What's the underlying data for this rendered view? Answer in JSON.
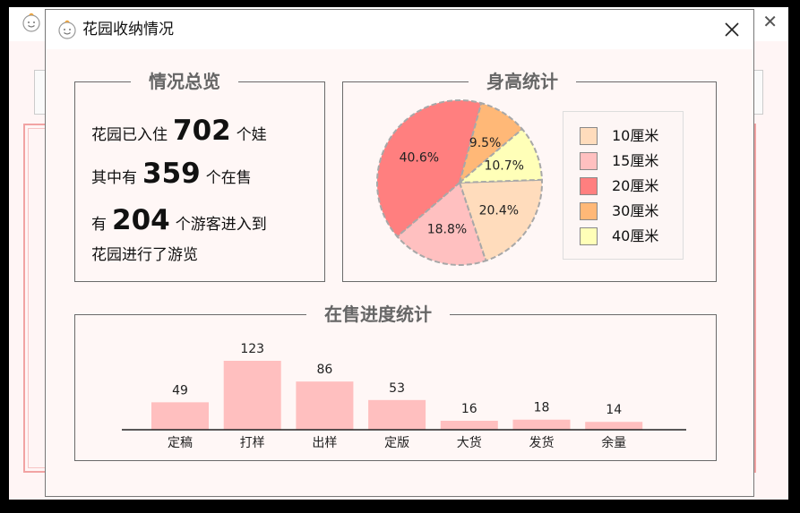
{
  "dialog": {
    "title": "花园收纳情况",
    "close_icon": "close-icon"
  },
  "overview": {
    "legend": "情况总览",
    "line1_prefix": "花园已入住",
    "line1_value": "702",
    "line1_suffix": "个娃",
    "line2_prefix": "其中有",
    "line2_value": "359",
    "line2_suffix": "个在售",
    "line3_prefix": "有",
    "line3_value": "204",
    "line3_suffix": "个游客进入到",
    "line4": "花园进行了游览"
  },
  "height_stats": {
    "legend": "身高统计",
    "legend_items": [
      {
        "label": "10厘米",
        "color": "#ffdcbc"
      },
      {
        "label": "15厘米",
        "color": "#ffc0c0"
      },
      {
        "label": "20厘米",
        "color": "#ff7f7f"
      },
      {
        "label": "30厘米",
        "color": "#ffb877"
      },
      {
        "label": "40厘米",
        "color": "#ffffb8"
      }
    ]
  },
  "sale_progress": {
    "legend": "在售进度统计"
  },
  "chart_data": [
    {
      "type": "pie",
      "slices": [
        {
          "label": "10厘米",
          "percent": 20.4,
          "display": "20.4%",
          "color": "#ffdcbc"
        },
        {
          "label": "15厘米",
          "percent": 18.8,
          "display": "18.8%",
          "color": "#ffc0c0"
        },
        {
          "label": "20厘米",
          "percent": 40.6,
          "display": "40.6%",
          "color": "#ff7f7f"
        },
        {
          "label": "30厘米",
          "percent": 9.5,
          "display": "9.5%",
          "color": "#ffb877"
        },
        {
          "label": "40厘米",
          "percent": 10.7,
          "display": "10.7%",
          "color": "#ffffb8"
        }
      ]
    },
    {
      "type": "bar",
      "categories": [
        "定稿",
        "打样",
        "出样",
        "定版",
        "大货",
        "发货",
        "余量"
      ],
      "values": [
        49,
        123,
        86,
        53,
        16,
        18,
        14
      ],
      "value_labels": [
        "49",
        "123",
        "86",
        "53",
        "16",
        "18",
        "14"
      ],
      "bar_color": "#ffbfbf",
      "ylim": [
        0,
        123
      ]
    }
  ]
}
